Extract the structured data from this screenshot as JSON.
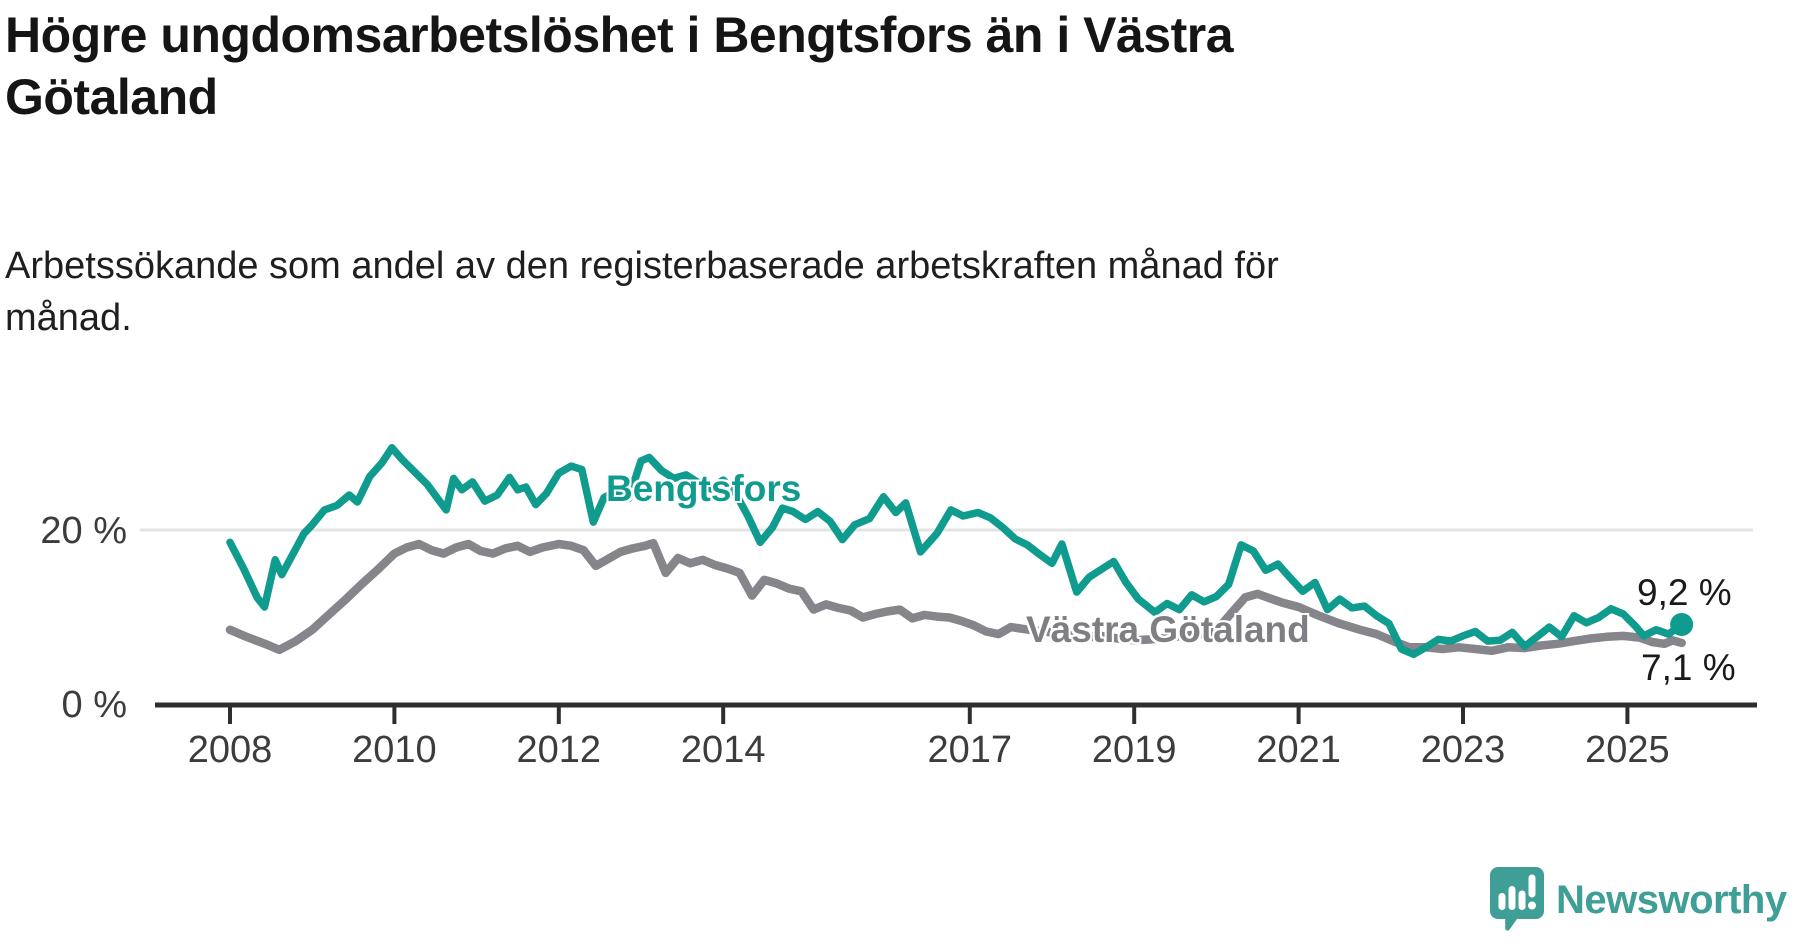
{
  "page": {
    "background": "#ffffff"
  },
  "title": "Högre ungdomsarbetslöshet i Bengtsfors än i Västra Götaland",
  "title_lines": [
    "Högre ungdomsarbetslöshet i Bengtsfors än i Västra",
    "Götaland"
  ],
  "subtitle": "Arbetssökande som andel av den registerbaserade arbetskraften månad för månad.",
  "subtitle_lines": [
    "Arbetssökande som andel av den registerbaserade arbetskraften månad för",
    "månad."
  ],
  "branding": {
    "logo_text": "Newsworthy",
    "logo_color": "#3f9f97",
    "logo_icon": "speech-bubble-bar-chart-icon"
  },
  "colors": {
    "bengtsfors_line": "#0f9b8d",
    "vastra_gotaland_line": "#85858b",
    "axis": "#2e2e2e",
    "tick_text": "#3c3c3c",
    "gridline": "#e3e3e3",
    "value_text": "#1a1a1a"
  },
  "chart_data": {
    "type": "line",
    "x_unit": "year, monthly observations",
    "x_range": [
      2008.0,
      2025.66
    ],
    "ylim": [
      0,
      37
    ],
    "grid": "single horizontal gridline at 20 %",
    "legend": "inline series labels",
    "y_gridlines": [
      20
    ],
    "y_ticks": [
      {
        "value": 0,
        "label": "0 %"
      },
      {
        "value": 20,
        "label": "20 %"
      }
    ],
    "x_ticks": [
      {
        "value": 2008,
        "label": "2008"
      },
      {
        "value": 2010,
        "label": "2010"
      },
      {
        "value": 2012,
        "label": "2012"
      },
      {
        "value": 2014,
        "label": "2014"
      },
      {
        "value": 2017,
        "label": "2017"
      },
      {
        "value": 2019,
        "label": "2019"
      },
      {
        "value": 2021,
        "label": "2021"
      },
      {
        "value": 2023,
        "label": "2023"
      },
      {
        "value": 2025,
        "label": "2025"
      }
    ],
    "series": [
      {
        "name": "Bengtsfors",
        "color": "#0f9b8d",
        "end_label": "9,2 %",
        "end_value": 9.2,
        "end_dot": true,
        "points": [
          [
            2008.0,
            18.6
          ],
          [
            2008.17,
            15.5
          ],
          [
            2008.33,
            12.3
          ],
          [
            2008.42,
            11.2
          ],
          [
            2008.55,
            16.6
          ],
          [
            2008.63,
            14.9
          ],
          [
            2008.78,
            17.5
          ],
          [
            2008.9,
            19.6
          ],
          [
            2009.0,
            20.6
          ],
          [
            2009.15,
            22.3
          ],
          [
            2009.3,
            22.8
          ],
          [
            2009.45,
            24.0
          ],
          [
            2009.55,
            23.2
          ],
          [
            2009.7,
            26.1
          ],
          [
            2009.85,
            27.7
          ],
          [
            2009.97,
            29.4
          ],
          [
            2010.1,
            28.0
          ],
          [
            2010.25,
            26.6
          ],
          [
            2010.4,
            25.2
          ],
          [
            2010.55,
            23.3
          ],
          [
            2010.63,
            22.3
          ],
          [
            2010.72,
            25.9
          ],
          [
            2010.82,
            24.6
          ],
          [
            2010.95,
            25.5
          ],
          [
            2011.1,
            23.3
          ],
          [
            2011.25,
            24.0
          ],
          [
            2011.4,
            26.0
          ],
          [
            2011.5,
            24.6
          ],
          [
            2011.6,
            24.9
          ],
          [
            2011.72,
            22.9
          ],
          [
            2011.85,
            24.2
          ],
          [
            2012.0,
            26.5
          ],
          [
            2012.15,
            27.3
          ],
          [
            2012.28,
            26.9
          ],
          [
            2012.42,
            20.9
          ],
          [
            2012.55,
            23.7
          ],
          [
            2012.7,
            24.5
          ],
          [
            2012.85,
            23.6
          ],
          [
            2013.0,
            27.9
          ],
          [
            2013.1,
            28.3
          ],
          [
            2013.25,
            26.8
          ],
          [
            2013.4,
            25.9
          ],
          [
            2013.55,
            26.3
          ],
          [
            2013.7,
            25.4
          ],
          [
            2013.85,
            24.7
          ],
          [
            2014.0,
            25.7
          ],
          [
            2014.15,
            24.2
          ],
          [
            2014.3,
            21.6
          ],
          [
            2014.45,
            18.6
          ],
          [
            2014.6,
            20.3
          ],
          [
            2014.72,
            22.5
          ],
          [
            2014.85,
            22.1
          ],
          [
            2015.0,
            21.2
          ],
          [
            2015.15,
            22.1
          ],
          [
            2015.3,
            21.0
          ],
          [
            2015.45,
            18.9
          ],
          [
            2015.6,
            20.6
          ],
          [
            2015.78,
            21.3
          ],
          [
            2015.95,
            23.8
          ],
          [
            2016.1,
            22.0
          ],
          [
            2016.22,
            23.1
          ],
          [
            2016.4,
            17.5
          ],
          [
            2016.6,
            19.6
          ],
          [
            2016.77,
            22.3
          ],
          [
            2016.92,
            21.6
          ],
          [
            2017.1,
            22.0
          ],
          [
            2017.25,
            21.4
          ],
          [
            2017.4,
            20.3
          ],
          [
            2017.55,
            19.0
          ],
          [
            2017.7,
            18.3
          ],
          [
            2017.85,
            17.2
          ],
          [
            2018.0,
            16.2
          ],
          [
            2018.12,
            18.4
          ],
          [
            2018.3,
            12.9
          ],
          [
            2018.45,
            14.6
          ],
          [
            2018.6,
            15.5
          ],
          [
            2018.75,
            16.4
          ],
          [
            2018.9,
            14.0
          ],
          [
            2019.05,
            12.1
          ],
          [
            2019.25,
            10.6
          ],
          [
            2019.4,
            11.6
          ],
          [
            2019.55,
            10.9
          ],
          [
            2019.7,
            12.6
          ],
          [
            2019.85,
            11.8
          ],
          [
            2020.0,
            12.4
          ],
          [
            2020.15,
            13.8
          ],
          [
            2020.3,
            18.3
          ],
          [
            2020.45,
            17.6
          ],
          [
            2020.6,
            15.4
          ],
          [
            2020.75,
            16.1
          ],
          [
            2020.9,
            14.5
          ],
          [
            2021.05,
            13.0
          ],
          [
            2021.2,
            14.0
          ],
          [
            2021.35,
            10.9
          ],
          [
            2021.5,
            12.1
          ],
          [
            2021.65,
            11.1
          ],
          [
            2021.8,
            11.3
          ],
          [
            2021.95,
            10.2
          ],
          [
            2022.1,
            9.3
          ],
          [
            2022.25,
            6.4
          ],
          [
            2022.4,
            5.8
          ],
          [
            2022.55,
            6.6
          ],
          [
            2022.7,
            7.5
          ],
          [
            2022.85,
            7.3
          ],
          [
            2023.0,
            7.9
          ],
          [
            2023.15,
            8.4
          ],
          [
            2023.3,
            7.3
          ],
          [
            2023.45,
            7.4
          ],
          [
            2023.6,
            8.3
          ],
          [
            2023.75,
            6.7
          ],
          [
            2023.9,
            7.8
          ],
          [
            2024.05,
            8.9
          ],
          [
            2024.2,
            7.8
          ],
          [
            2024.35,
            10.2
          ],
          [
            2024.5,
            9.4
          ],
          [
            2024.65,
            10.0
          ],
          [
            2024.8,
            11.0
          ],
          [
            2024.95,
            10.4
          ],
          [
            2025.1,
            9.0
          ],
          [
            2025.2,
            7.9
          ],
          [
            2025.35,
            8.6
          ],
          [
            2025.5,
            8.1
          ],
          [
            2025.66,
            9.2
          ]
        ]
      },
      {
        "name": "Västra Götaland",
        "color": "#85858b",
        "end_label": "7,1 %",
        "end_value": 7.1,
        "end_dot": false,
        "points": [
          [
            2008.0,
            8.6
          ],
          [
            2008.2,
            7.8
          ],
          [
            2008.45,
            6.9
          ],
          [
            2008.6,
            6.3
          ],
          [
            2008.8,
            7.3
          ],
          [
            2009.0,
            8.6
          ],
          [
            2009.2,
            10.3
          ],
          [
            2009.4,
            12.0
          ],
          [
            2009.6,
            13.8
          ],
          [
            2009.8,
            15.5
          ],
          [
            2010.0,
            17.3
          ],
          [
            2010.15,
            18.0
          ],
          [
            2010.3,
            18.4
          ],
          [
            2010.45,
            17.7
          ],
          [
            2010.6,
            17.3
          ],
          [
            2010.75,
            18.0
          ],
          [
            2010.9,
            18.4
          ],
          [
            2011.05,
            17.6
          ],
          [
            2011.2,
            17.3
          ],
          [
            2011.35,
            17.9
          ],
          [
            2011.5,
            18.2
          ],
          [
            2011.65,
            17.5
          ],
          [
            2011.8,
            18.0
          ],
          [
            2012.0,
            18.4
          ],
          [
            2012.15,
            18.2
          ],
          [
            2012.3,
            17.7
          ],
          [
            2012.45,
            15.9
          ],
          [
            2012.6,
            16.7
          ],
          [
            2012.75,
            17.5
          ],
          [
            2012.9,
            17.9
          ],
          [
            2013.05,
            18.2
          ],
          [
            2013.15,
            18.5
          ],
          [
            2013.3,
            15.1
          ],
          [
            2013.45,
            16.8
          ],
          [
            2013.6,
            16.2
          ],
          [
            2013.75,
            16.6
          ],
          [
            2013.9,
            16.0
          ],
          [
            2014.05,
            15.6
          ],
          [
            2014.2,
            15.1
          ],
          [
            2014.35,
            12.5
          ],
          [
            2014.5,
            14.3
          ],
          [
            2014.65,
            13.9
          ],
          [
            2014.8,
            13.3
          ],
          [
            2014.95,
            13.0
          ],
          [
            2015.1,
            10.9
          ],
          [
            2015.25,
            11.5
          ],
          [
            2015.4,
            11.1
          ],
          [
            2015.55,
            10.8
          ],
          [
            2015.7,
            10.0
          ],
          [
            2015.85,
            10.4
          ],
          [
            2016.0,
            10.7
          ],
          [
            2016.15,
            10.9
          ],
          [
            2016.3,
            9.9
          ],
          [
            2016.45,
            10.3
          ],
          [
            2016.6,
            10.1
          ],
          [
            2016.75,
            10.0
          ],
          [
            2016.9,
            9.6
          ],
          [
            2017.05,
            9.1
          ],
          [
            2017.2,
            8.4
          ],
          [
            2017.35,
            8.1
          ],
          [
            2017.5,
            8.9
          ],
          [
            2017.65,
            8.7
          ],
          [
            2017.8,
            8.5
          ],
          [
            2018.0,
            8.3
          ],
          [
            2018.2,
            8.0
          ],
          [
            2018.4,
            7.7
          ],
          [
            2018.6,
            7.9
          ],
          [
            2018.8,
            7.6
          ],
          [
            2019.0,
            7.4
          ],
          [
            2019.2,
            7.5
          ],
          [
            2019.4,
            7.7
          ],
          [
            2019.6,
            7.9
          ],
          [
            2019.8,
            8.1
          ],
          [
            2020.0,
            8.5
          ],
          [
            2020.2,
            10.7
          ],
          [
            2020.35,
            12.3
          ],
          [
            2020.5,
            12.7
          ],
          [
            2020.65,
            12.2
          ],
          [
            2020.8,
            11.7
          ],
          [
            2021.0,
            11.2
          ],
          [
            2021.25,
            10.2
          ],
          [
            2021.5,
            9.3
          ],
          [
            2021.75,
            8.6
          ],
          [
            2021.95,
            8.1
          ],
          [
            2022.15,
            7.3
          ],
          [
            2022.35,
            6.6
          ],
          [
            2022.55,
            6.6
          ],
          [
            2022.75,
            6.4
          ],
          [
            2022.95,
            6.6
          ],
          [
            2023.15,
            6.4
          ],
          [
            2023.35,
            6.2
          ],
          [
            2023.55,
            6.6
          ],
          [
            2023.75,
            6.5
          ],
          [
            2023.95,
            6.8
          ],
          [
            2024.15,
            7.0
          ],
          [
            2024.35,
            7.3
          ],
          [
            2024.55,
            7.6
          ],
          [
            2024.75,
            7.8
          ],
          [
            2024.95,
            7.9
          ],
          [
            2025.15,
            7.7
          ],
          [
            2025.3,
            7.2
          ],
          [
            2025.45,
            7.0
          ],
          [
            2025.55,
            7.4
          ],
          [
            2025.66,
            7.1
          ]
        ]
      }
    ]
  }
}
